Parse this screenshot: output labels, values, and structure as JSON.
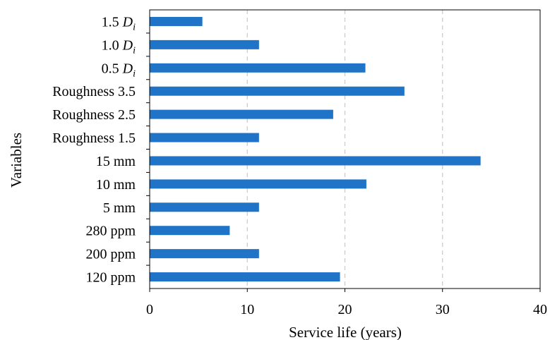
{
  "chart_data": {
    "type": "bar",
    "orientation": "horizontal",
    "categories": [
      "1.5 D_i",
      "1.0 D_i",
      "0.5 D_i",
      "Roughness 3.5",
      "Roughness 2.5",
      "Roughness 1.5",
      "15 mm",
      "10 mm",
      "5 mm",
      "280 ppm",
      "200 ppm",
      "120 ppm"
    ],
    "category_labels": [
      {
        "main": "1.5 ",
        "var": "D",
        "sub": "i"
      },
      {
        "main": "1.0 ",
        "var": "D",
        "sub": "i"
      },
      {
        "main": "0.5 ",
        "var": "D",
        "sub": "i"
      },
      {
        "main": "Roughness 3.5"
      },
      {
        "main": "Roughness 2.5"
      },
      {
        "main": "Roughness 1.5"
      },
      {
        "main": "15 mm"
      },
      {
        "main": "10 mm"
      },
      {
        "main": "5 mm"
      },
      {
        "main": "280 ppm"
      },
      {
        "main": "200 ppm"
      },
      {
        "main": "120 ppm"
      }
    ],
    "values": [
      5.4,
      11.2,
      22.1,
      26.1,
      18.8,
      11.2,
      33.9,
      22.2,
      11.2,
      8.2,
      11.2,
      19.5
    ],
    "xlabel": "Service life (years)",
    "ylabel": "Variables",
    "xlim": [
      0,
      40
    ],
    "xticks": [
      0,
      10,
      20,
      30,
      40
    ],
    "grid": "vertical dashed",
    "legend": "none",
    "bar_color": "#1f74c7",
    "grid_color": "#c8c8c8",
    "axis_color": "#000000"
  }
}
